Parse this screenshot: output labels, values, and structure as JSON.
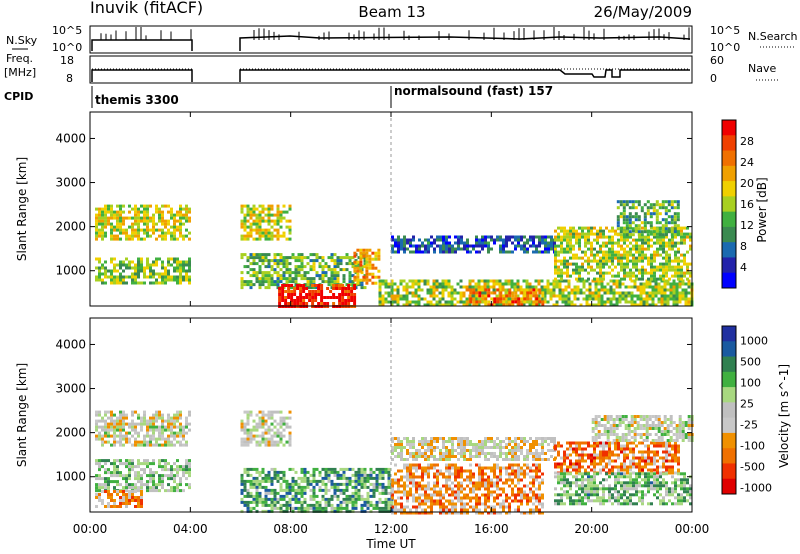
{
  "header": {
    "title": "Inuvik (fitACF)",
    "beam": "Beam 13",
    "date": "26/May/2009"
  },
  "labels": {
    "nsky": "N.Sky",
    "freq": "Freq.",
    "mhz": "[MHz]",
    "cpid": "CPID",
    "nsearch": "N.Search",
    "nave": "Nave",
    "nsky_ticks": [
      "10^5",
      "10^0"
    ],
    "nsearch_ticks": [
      "10^5",
      "10^0"
    ],
    "freq_ticks": [
      "18",
      "8"
    ],
    "nave_ticks": [
      "60",
      "0"
    ],
    "cpid_programs": [
      {
        "name": "themis 3300",
        "start_hour": 0
      },
      {
        "name": "normalsound (fast) 157",
        "start_hour": 12
      }
    ],
    "x_axis_label": "Time UT",
    "x_ticks": [
      "00:00",
      "04:00",
      "08:00",
      "12:00",
      "16:00",
      "20:00",
      "00:00"
    ]
  },
  "colors": {
    "power_scale": [
      "#0000ff",
      "#2222aa",
      "#1a6ab0",
      "#3a8a50",
      "#40b040",
      "#a8d020",
      "#f0d000",
      "#f0a000",
      "#f07000",
      "#f04000",
      "#f00000"
    ],
    "velocity_scale": [
      "#e00000",
      "#f03000",
      "#f07000",
      "#f09000",
      "#c8c8c8",
      "#c0c0c0",
      "#a8d880",
      "#40b040",
      "#308050",
      "#1a5aa0",
      "#2030a0"
    ]
  },
  "chart_data": [
    {
      "type": "heatmap",
      "name": "power",
      "ylabel": "Slant Range [km]",
      "xlabel": "Time UT",
      "xlim": [
        0,
        24
      ],
      "ylim": [
        200,
        4600
      ],
      "yticks": [
        1000,
        2000,
        3000,
        4000
      ],
      "colorbar_label": "Power [dB]",
      "colorbar_ticks": [
        4,
        8,
        12,
        16,
        20,
        24,
        28
      ],
      "data_gaps_hours": [
        [
          4.0,
          6.0
        ]
      ],
      "regions": [
        {
          "t0": 0.2,
          "t1": 4.0,
          "r0": 1700,
          "r1": 2500,
          "level": 0.55
        },
        {
          "t0": 0.2,
          "t1": 4.0,
          "r0": 700,
          "r1": 1300,
          "level": 0.45
        },
        {
          "t0": 6.0,
          "t1": 8.0,
          "r0": 1700,
          "r1": 2500,
          "level": 0.55
        },
        {
          "t0": 6.0,
          "t1": 11.0,
          "r0": 600,
          "r1": 1400,
          "level": 0.4
        },
        {
          "t0": 7.5,
          "t1": 10.5,
          "r0": 200,
          "r1": 700,
          "level": 0.95
        },
        {
          "t0": 10.5,
          "t1": 11.5,
          "r0": 700,
          "r1": 1500,
          "level": 0.7
        },
        {
          "t0": 11.5,
          "t1": 24.0,
          "r0": 200,
          "r1": 800,
          "level": 0.5
        },
        {
          "t0": 15.0,
          "t1": 18.0,
          "r0": 200,
          "r1": 600,
          "level": 0.75
        },
        {
          "t0": 12.0,
          "t1": 18.5,
          "r0": 1400,
          "r1": 1800,
          "level": 0.2
        },
        {
          "t0": 18.5,
          "t1": 24.0,
          "r0": 800,
          "r1": 2000,
          "level": 0.5
        },
        {
          "t0": 21.0,
          "t1": 23.5,
          "r0": 1800,
          "r1": 2600,
          "level": 0.4
        }
      ]
    },
    {
      "type": "heatmap",
      "name": "velocity",
      "ylabel": "Slant Range [km]",
      "xlabel": "Time UT",
      "xlim": [
        0,
        24
      ],
      "ylim": [
        200,
        4600
      ],
      "yticks": [
        1000,
        2000,
        3000,
        4000
      ],
      "colorbar_label": "Velocity [m s^-1]",
      "colorbar_ticks": [
        1000,
        500,
        100,
        25,
        -25,
        -100,
        -500,
        -1000
      ],
      "data_gaps_hours": [
        [
          4.0,
          6.0
        ]
      ],
      "regions": [
        {
          "t0": 0.2,
          "t1": 4.0,
          "r0": 1700,
          "r1": 2500,
          "level": 0.48
        },
        {
          "t0": 0.2,
          "t1": 4.0,
          "r0": 700,
          "r1": 1400,
          "level": 0.6
        },
        {
          "t0": 0.2,
          "t1": 2.0,
          "r0": 300,
          "r1": 700,
          "level": 0.3
        },
        {
          "t0": 6.0,
          "t1": 8.0,
          "r0": 1700,
          "r1": 2500,
          "level": 0.48
        },
        {
          "t0": 6.0,
          "t1": 12.0,
          "r0": 200,
          "r1": 1200,
          "level": 0.7
        },
        {
          "t0": 12.0,
          "t1": 18.0,
          "r0": 200,
          "r1": 1300,
          "level": 0.3
        },
        {
          "t0": 12.0,
          "t1": 18.5,
          "r0": 1400,
          "r1": 1900,
          "level": 0.45
        },
        {
          "t0": 18.5,
          "t1": 23.5,
          "r0": 1100,
          "r1": 1800,
          "level": 0.25
        },
        {
          "t0": 18.5,
          "t1": 24.0,
          "r0": 400,
          "r1": 1100,
          "level": 0.65
        },
        {
          "t0": 20.0,
          "t1": 24.0,
          "r0": 1800,
          "r1": 2400,
          "level": 0.5
        }
      ]
    }
  ]
}
